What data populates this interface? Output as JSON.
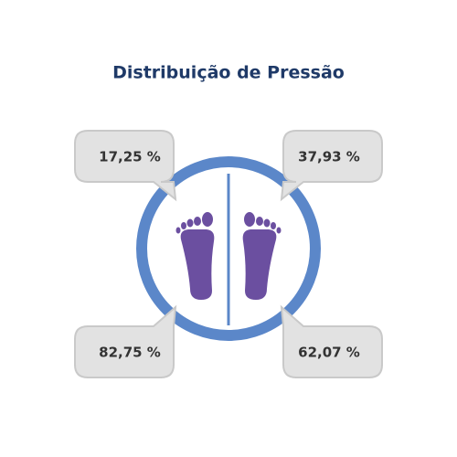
{
  "title": "Distribuição de Pressão",
  "readings": [
    "17,25 %",
    "37,93 %",
    "82,75 %",
    "62,07 %"
  ]
}
